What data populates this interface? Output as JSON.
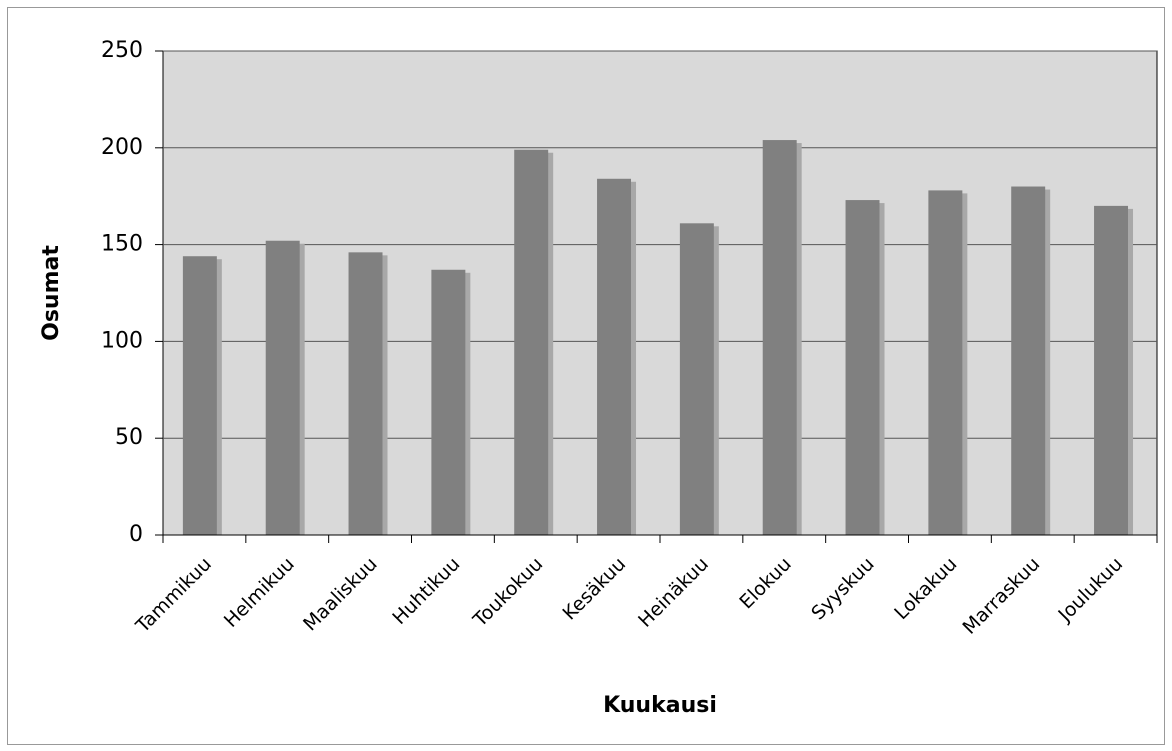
{
  "chart_data": {
    "type": "bar",
    "categories": [
      "Tammikuu",
      "Helmikuu",
      "Maaliskuu",
      "Huhtikuu",
      "Toukokuu",
      "Kesäkuu",
      "Heinäkuu",
      "Elokuu",
      "Syyskuu",
      "Lokakuu",
      "Marraskuu",
      "Joulukuu"
    ],
    "values": [
      144,
      152,
      146,
      137,
      199,
      184,
      161,
      204,
      173,
      178,
      180,
      170
    ],
    "color": "#808080",
    "ylim": [
      0,
      250
    ],
    "yticks": [
      0,
      50,
      100,
      150,
      200,
      250
    ],
    "grid": true,
    "xlabel": "Kuukausi",
    "ylabel": "Osumat"
  }
}
